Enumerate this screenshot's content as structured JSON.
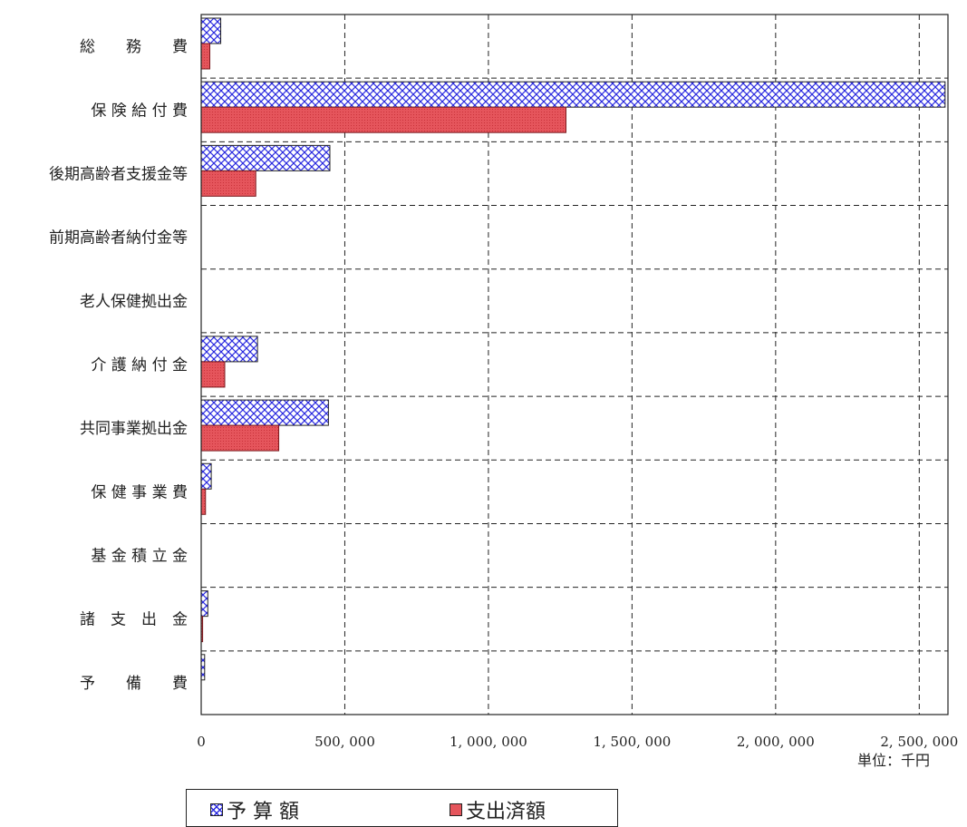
{
  "chart_data": {
    "type": "bar",
    "orientation": "horizontal",
    "categories": [
      "総　　務　　費",
      "保 険 給 付 費",
      "後期高齢者支援金等",
      "前期高齢者納付金等",
      "老人保健拠出金",
      "介 護 納 付 金",
      "共同事業拠出金",
      "保 健 事 業 費",
      "基 金 積 立 金",
      "諸　支　出　金",
      "予　　備　　費"
    ],
    "series": [
      {
        "name": "予 算 額",
        "values": [
          68000,
          2590000,
          448000,
          0,
          0,
          196000,
          443000,
          35000,
          0,
          23000,
          12000
        ],
        "color": "#2a2adf",
        "pattern": "crosshatch"
      },
      {
        "name": "支出済額",
        "values": [
          30000,
          1270000,
          190000,
          0,
          0,
          82000,
          270000,
          15000,
          0,
          5000,
          0
        ],
        "color": "#e5555c",
        "pattern": "solid"
      }
    ],
    "xlim": [
      0,
      2600000
    ],
    "xticks": [
      0,
      500000,
      1000000,
      1500000,
      2000000,
      2500000
    ],
    "xtick_labels": [
      "0",
      "500, 000",
      "1, 000, 000",
      "1, 500, 000",
      "2, 000, 000",
      "2, 500, 000"
    ],
    "grid": true,
    "unit_label": "単位：千円",
    "legend_position": "bottom-left"
  }
}
